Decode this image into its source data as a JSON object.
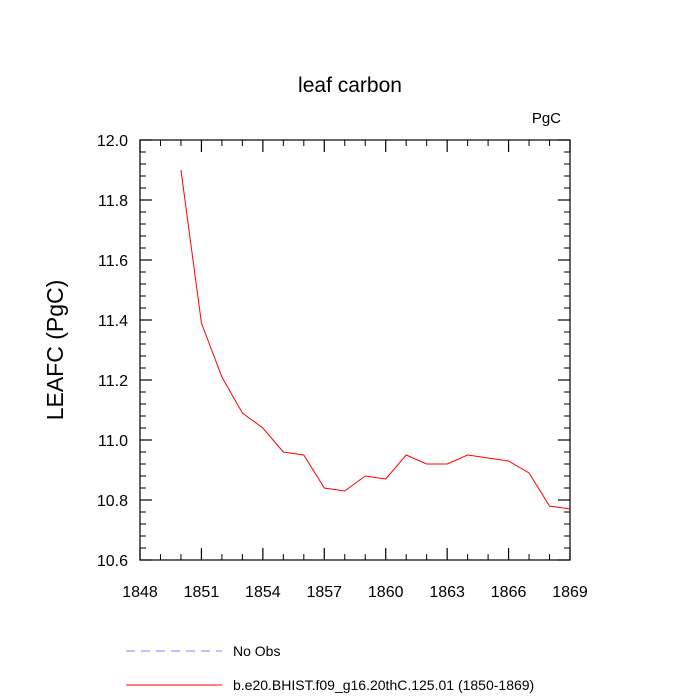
{
  "chart_data": {
    "type": "line",
    "title": "leaf carbon",
    "units_label": "PgC",
    "ylabel": "LEAFC  (PgC)",
    "xlabel": "",
    "xlim": [
      1848,
      1869
    ],
    "ylim": [
      10.6,
      12.0
    ],
    "x_ticks": [
      1848,
      1851,
      1854,
      1857,
      1860,
      1863,
      1866,
      1869
    ],
    "y_ticks": [
      10.6,
      10.8,
      11.0,
      11.2,
      11.4,
      11.6,
      11.8,
      12.0
    ],
    "y_tick_labels": [
      "10.6",
      "10.8",
      "11.0",
      "11.2",
      "11.4",
      "11.6",
      "11.8",
      "12.0"
    ],
    "x_minor_step": 1,
    "y_minor_step": 0.04,
    "grid": false,
    "legend_position": "bottom-left, below plot",
    "series": [
      {
        "name": "b.e20.BHIST.f09_g16.20thC.125.01 (1850-1869)",
        "color": "#ff0000",
        "dash": "solid",
        "x": [
          1850,
          1851,
          1852,
          1853,
          1854,
          1855,
          1856,
          1857,
          1858,
          1859,
          1860,
          1861,
          1862,
          1863,
          1864,
          1865,
          1866,
          1867,
          1868,
          1869
        ],
        "values": [
          11.9,
          11.39,
          11.21,
          11.09,
          11.04,
          10.96,
          10.95,
          10.84,
          10.83,
          10.88,
          10.87,
          10.95,
          10.92,
          10.92,
          10.95,
          10.94,
          10.93,
          10.89,
          10.78,
          10.77
        ]
      }
    ],
    "legend": [
      {
        "label": "No Obs",
        "color": "#8080ff",
        "dash": "dashed"
      },
      {
        "label": "b.e20.BHIST.f09_g16.20thC.125.01 (1850-1869)",
        "color": "#ff0000",
        "dash": "solid"
      }
    ]
  }
}
